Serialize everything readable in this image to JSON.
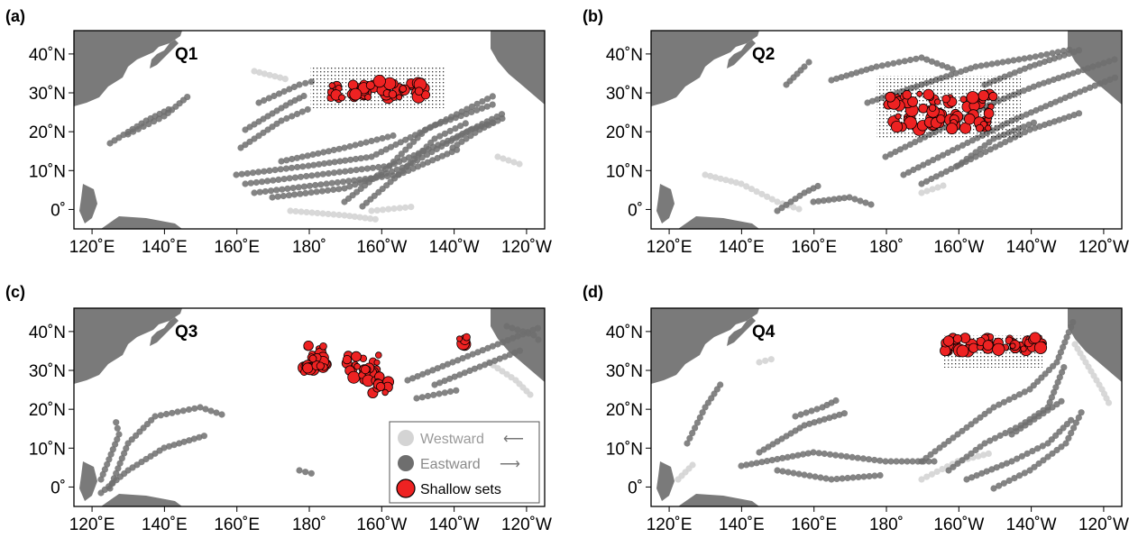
{
  "panels": [
    {
      "label": "(a)",
      "quarter": "Q1"
    },
    {
      "label": "(b)",
      "quarter": "Q2"
    },
    {
      "label": "(c)",
      "quarter": "Q3"
    },
    {
      "label": "(d)",
      "quarter": "Q4"
    }
  ],
  "x_ticks": [
    "120˚E",
    "140˚E",
    "160˚E",
    "180˚",
    "160˚W",
    "140˚W",
    "120˚W"
  ],
  "y_ticks": [
    "40˚N",
    "30˚N",
    "20˚N",
    "10˚N",
    "0˚"
  ],
  "legend": {
    "westward": "Westward",
    "eastward": "Eastward",
    "shallow": "Shallow sets",
    "west_arrow": "⟵",
    "east_arrow": "⟶"
  },
  "colors": {
    "land": "#7a7a7a",
    "westward": "#d4d4d4",
    "eastward": "#6e6e6e",
    "shallow_fill": "#ee2222",
    "shallow_edge": "#000000",
    "effort_dots": "#000000"
  },
  "map": {
    "lon_range": [
      115,
      245
    ],
    "lat_range": [
      -5,
      46
    ],
    "x_tick_lons": [
      120,
      140,
      160,
      180,
      200,
      220,
      240
    ],
    "y_tick_lats": [
      40,
      30,
      20,
      10,
      0
    ]
  }
}
